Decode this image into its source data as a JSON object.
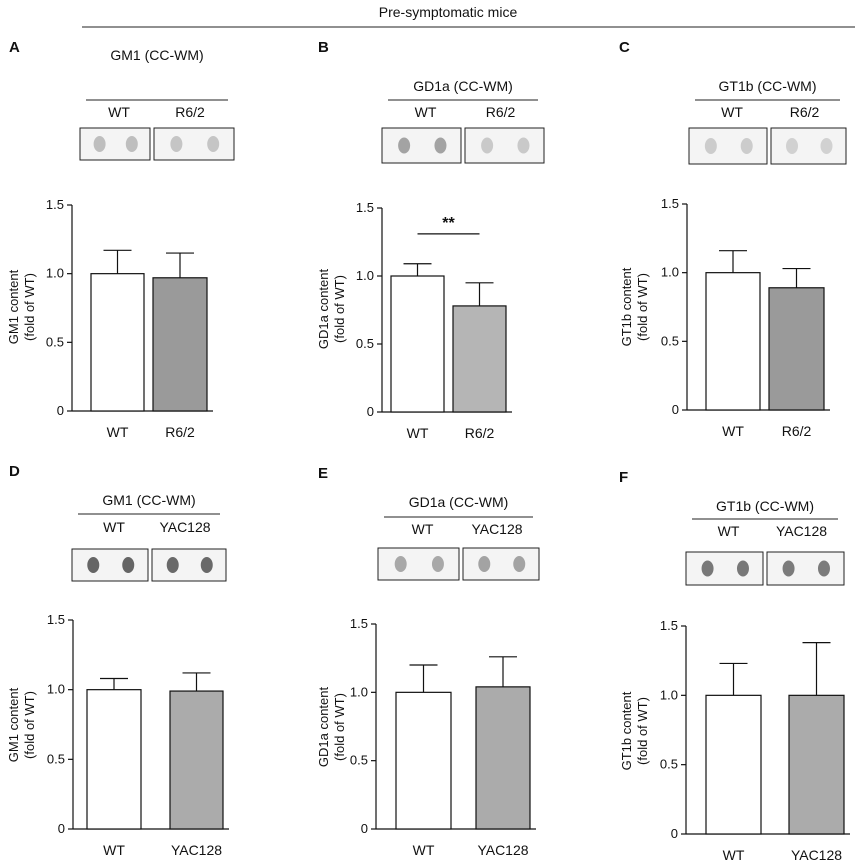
{
  "header": {
    "title": "Pre-symptomatic mice"
  },
  "chart_data": [
    {
      "panel": "A",
      "type": "bar",
      "blot_title": "GM1 (CC-WM)",
      "categories": [
        "WT",
        "R6/2"
      ],
      "values": [
        1.0,
        0.97
      ],
      "errors": [
        0.17,
        0.18
      ],
      "colors": [
        "#ffffff",
        "#9a9a9a"
      ],
      "ylabel_line1": "GM1 content",
      "ylabel_line2": "(fold of WT)",
      "ylim": [
        0,
        1.5
      ],
      "yticks": [
        0,
        0.5,
        1.0,
        1.5
      ],
      "ytick_labels": [
        "0",
        "0.5",
        "1.0",
        "1.5"
      ],
      "significance": null,
      "blot_spot_darkness": [
        "#b8b8b8",
        "#c0c0c0"
      ]
    },
    {
      "panel": "B",
      "type": "bar",
      "blot_title": "GD1a (CC-WM)",
      "categories": [
        "WT",
        "R6/2"
      ],
      "values": [
        1.0,
        0.78
      ],
      "errors": [
        0.09,
        0.17
      ],
      "colors": [
        "#ffffff",
        "#b5b5b5"
      ],
      "ylabel_line1": "GD1a content",
      "ylabel_line2": "(fold of WT)",
      "ylim": [
        0,
        1.5
      ],
      "yticks": [
        0,
        0.5,
        1.0,
        1.5
      ],
      "ytick_labels": [
        "0",
        "0.5",
        "1.0",
        "1.5"
      ],
      "significance": "**",
      "blot_spot_darkness": [
        "#9a9a9a",
        "#c4c4c4"
      ]
    },
    {
      "panel": "C",
      "type": "bar",
      "blot_title": "GT1b (CC-WM)",
      "categories": [
        "WT",
        "R6/2"
      ],
      "values": [
        1.0,
        0.89
      ],
      "errors": [
        0.16,
        0.14
      ],
      "colors": [
        "#ffffff",
        "#9a9a9a"
      ],
      "ylabel_line1": "GT1b content",
      "ylabel_line2": "(fold of WT)",
      "ylim": [
        0,
        1.5
      ],
      "yticks": [
        0,
        0.5,
        1.0,
        1.5
      ],
      "ytick_labels": [
        "0",
        "0.5",
        "1.0",
        "1.5"
      ],
      "significance": null,
      "blot_spot_darkness": [
        "#c8c8c8",
        "#cdcdcd"
      ]
    },
    {
      "panel": "D",
      "type": "bar",
      "blot_title": "GM1 (CC-WM)",
      "categories": [
        "WT",
        "YAC128"
      ],
      "values": [
        1.0,
        0.99
      ],
      "errors": [
        0.08,
        0.13
      ],
      "colors": [
        "#ffffff",
        "#ababab"
      ],
      "ylabel_line1": "GM1 content",
      "ylabel_line2": "(fold of WT)",
      "ylim": [
        0,
        1.5
      ],
      "yticks": [
        0,
        0.5,
        1.0,
        1.5
      ],
      "ytick_labels": [
        "0",
        "0.5",
        "1.0",
        "1.5"
      ],
      "significance": null,
      "blot_spot_darkness": [
        "#555555",
        "#5a5a5a"
      ]
    },
    {
      "panel": "E",
      "type": "bar",
      "blot_title": "GD1a (CC-WM)",
      "categories": [
        "WT",
        "YAC128"
      ],
      "values": [
        1.0,
        1.04
      ],
      "errors": [
        0.2,
        0.22
      ],
      "colors": [
        "#ffffff",
        "#ababab"
      ],
      "ylabel_line1": "GD1a content",
      "ylabel_line2": "(fold of WT)",
      "ylim": [
        0,
        1.5
      ],
      "yticks": [
        0,
        0.5,
        1.0,
        1.5
      ],
      "ytick_labels": [
        "0",
        "0.5",
        "1.0",
        "1.5"
      ],
      "significance": null,
      "blot_spot_darkness": [
        "#a0a0a0",
        "#9a9a9a"
      ]
    },
    {
      "panel": "F",
      "type": "bar",
      "blot_title": "GT1b (CC-WM)",
      "categories": [
        "WT",
        "YAC128"
      ],
      "values": [
        1.0,
        1.0
      ],
      "errors": [
        0.23,
        0.38
      ],
      "colors": [
        "#ffffff",
        "#ababab"
      ],
      "ylabel_line1": "GT1b content",
      "ylabel_line2": "(fold of WT)",
      "ylim": [
        0,
        1.5
      ],
      "yticks": [
        0,
        0.5,
        1.0,
        1.5
      ],
      "ytick_labels": [
        "0",
        "0.5",
        "1.0",
        "1.5"
      ],
      "significance": null,
      "blot_spot_darkness": [
        "#6a6a6a",
        "#6e6e6e"
      ]
    }
  ]
}
